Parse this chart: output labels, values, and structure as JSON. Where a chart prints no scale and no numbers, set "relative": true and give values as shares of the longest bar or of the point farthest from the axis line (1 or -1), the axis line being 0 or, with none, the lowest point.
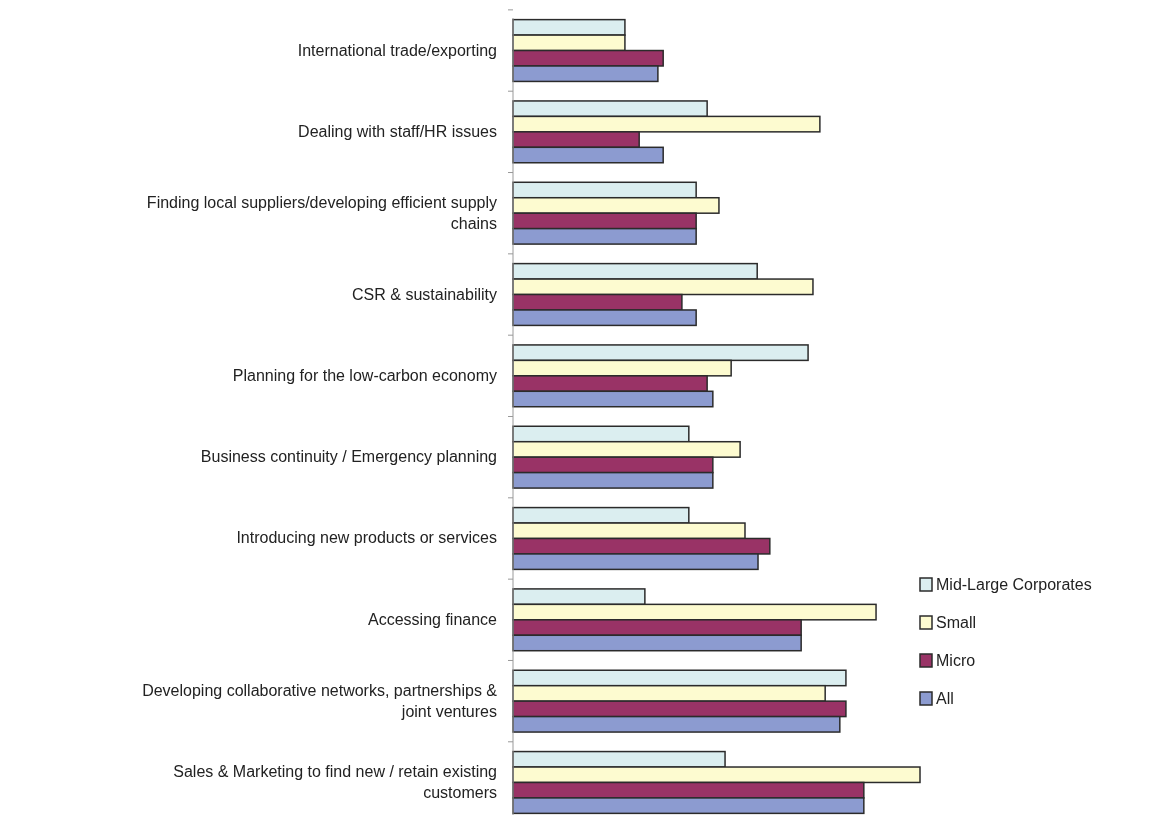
{
  "chart_data": {
    "type": "bar",
    "orientation": "horizontal",
    "relative": true,
    "legend": "right",
    "categories": [
      "International trade/exporting",
      "Dealing with staff/HR issues",
      "Finding local suppliers/developing efficient supply chains",
      "CSR & sustainability",
      "Planning for the low-carbon economy",
      "Business continuity / Emergency planning",
      "Introducing new products or services",
      "Accessing finance",
      "Developing collaborative networks, partnerships & joint ventures",
      "Sales & Marketing to find new / retain existing customers"
    ],
    "series": [
      {
        "name": "Mid-Large Corporates",
        "color": "#dbeef0",
        "values": [
          0.275,
          0.477,
          0.45,
          0.6,
          0.725,
          0.432,
          0.432,
          0.324,
          0.818,
          0.521
        ]
      },
      {
        "name": "Small",
        "color": "#fdfbd0",
        "values": [
          0.275,
          0.754,
          0.506,
          0.737,
          0.536,
          0.558,
          0.57,
          0.892,
          0.767,
          1
        ]
      },
      {
        "name": "Micro",
        "color": "#993366",
        "values": [
          0.369,
          0.31,
          0.45,
          0.415,
          0.477,
          0.491,
          0.631,
          0.708,
          0.818,
          0.862
        ]
      },
      {
        "name": "All",
        "color": "#8c9bd0",
        "values": [
          0.356,
          0.369,
          0.45,
          0.45,
          0.491,
          0.491,
          0.602,
          0.708,
          0.803,
          0.862
        ]
      }
    ]
  }
}
